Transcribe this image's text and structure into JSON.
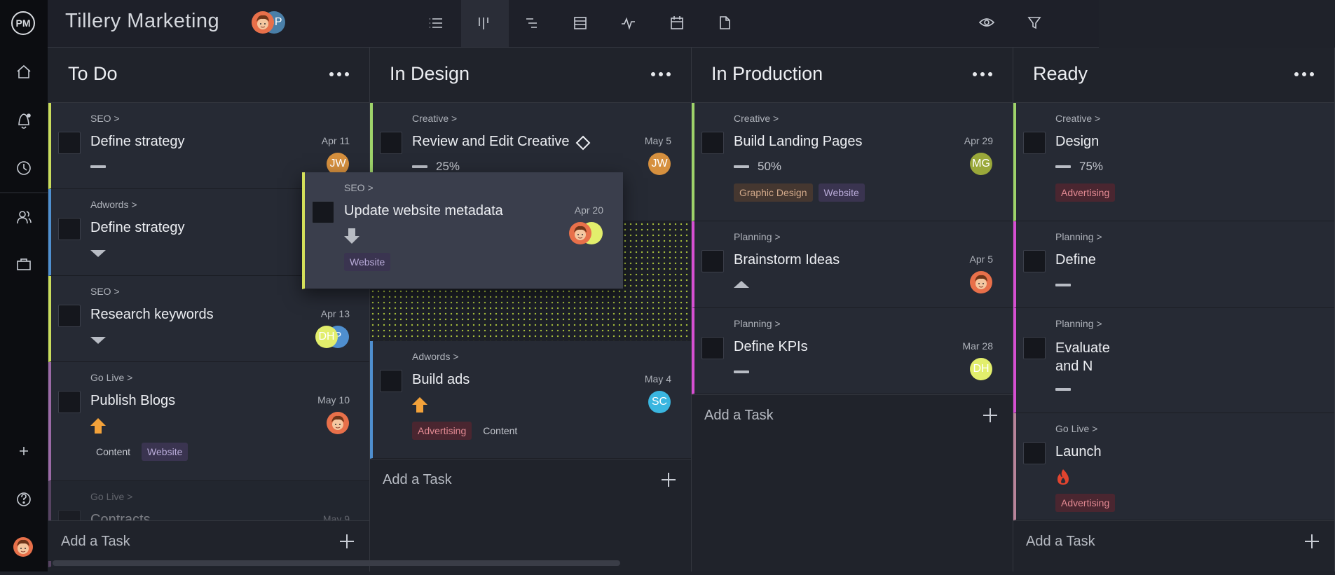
{
  "app": {
    "logo": "PM",
    "title": "Tillery Marketing",
    "members": [
      {
        "face": true,
        "color": "#e8704a"
      },
      {
        "label": "GP",
        "color": "#4a7fa8"
      }
    ]
  },
  "columns": [
    {
      "title": "To Do",
      "add_label": "Add a Task",
      "tasks": [
        {
          "group": "SEO >",
          "name": "Define strategy",
          "date": "Apr 11",
          "color": "#c9dc5c",
          "priority": "low",
          "avatars": [
            {
              "label": "JW",
              "color": "#d6903e"
            }
          ]
        },
        {
          "group": "Adwords >",
          "name": "Define strategy",
          "color": "#4f8fcf",
          "priority": "down"
        },
        {
          "group": "SEO >",
          "name": "Research keywords",
          "date": "Apr 13",
          "color": "#c9dc5c",
          "priority": "down",
          "avatars": [
            {
              "label": "DH",
              "color": "#e2ee6c"
            },
            {
              "label": "P",
              "color": "#4f8fcf"
            }
          ]
        },
        {
          "group": "Go Live >",
          "name": "Publish Blogs",
          "date": "May 10",
          "color": "#9b6aa6",
          "priority": "high",
          "avatars": [
            {
              "face": true,
              "color": "#e8704a"
            }
          ],
          "tags": [
            {
              "text": "Content",
              "color": "plain"
            },
            {
              "text": "Website",
              "color": "purple"
            }
          ]
        },
        {
          "group": "Go Live >",
          "name": "Contracts",
          "date": "May 9",
          "color": "#9b6aa6"
        }
      ]
    },
    {
      "title": "In Design",
      "add_label": "Add a Task",
      "tasks": [
        {
          "group": "Creative >",
          "name": "Review and Edit Creative",
          "milestone": true,
          "date": "May 5",
          "color": "#9ed36a",
          "priority": "low",
          "progress": "25%",
          "avatars": [
            {
              "label": "JW",
              "color": "#d6903e"
            }
          ]
        },
        {
          "group": "Adwords >",
          "name": "Build ads",
          "date": "May 4",
          "color": "#4f8fcf",
          "priority": "high",
          "avatars": [
            {
              "label": "SC",
              "color": "#3ab6e0"
            }
          ],
          "tags": [
            {
              "text": "Advertising",
              "color": "red"
            },
            {
              "text": "Content",
              "color": "plain"
            }
          ]
        }
      ]
    },
    {
      "title": "In Production",
      "add_label": "Add a Task",
      "tasks": [
        {
          "group": "Creative >",
          "name": "Build Landing Pages",
          "date": "Apr 29",
          "color": "#9ed36a",
          "priority": "low",
          "progress": "50%",
          "avatars": [
            {
              "label": "MG",
              "color": "#9aa83a"
            }
          ],
          "tags": [
            {
              "text": "Graphic Design",
              "color": "brown"
            },
            {
              "text": "Website",
              "color": "purple"
            }
          ]
        },
        {
          "group": "Planning >",
          "name": "Brainstorm Ideas",
          "date": "Apr 5",
          "color": "#d64fd2",
          "priority": "up",
          "avatars": [
            {
              "face": true,
              "color": "#e8704a"
            }
          ]
        },
        {
          "group": "Planning >",
          "name": "Define KPIs",
          "date": "Mar 28",
          "color": "#d64fd2",
          "priority": "low",
          "avatars": [
            {
              "label": "DH",
              "color": "#e2ee6c"
            }
          ]
        }
      ]
    },
    {
      "title": "Ready",
      "add_label": "Add a Task",
      "tasks": [
        {
          "group": "Creative >",
          "name": "Design",
          "color": "#9ed36a",
          "priority": "low",
          "progress": "75%",
          "tags": [
            {
              "text": "Advertising",
              "color": "red"
            }
          ]
        },
        {
          "group": "Planning >",
          "name": "Define",
          "color": "#d64fd2",
          "priority": "low"
        },
        {
          "group": "Planning >",
          "name": "Evaluate and N",
          "color": "#d64fd2",
          "priority": "low"
        },
        {
          "group": "Go Live >",
          "name": "Launch",
          "color": "#b8849a",
          "priority": "critical",
          "tags": [
            {
              "text": "Advertising",
              "color": "red"
            }
          ]
        }
      ]
    }
  ],
  "dragged_task": {
    "group": "SEO >",
    "name": "Update website metadata",
    "date": "Apr 20",
    "color": "#d4e05a",
    "priority": "lowest",
    "avatars": [
      {
        "face": true,
        "color": "#e8704a"
      },
      {
        "color": "#e2ee6c"
      }
    ],
    "tags": [
      {
        "text": "Website",
        "color": "purple"
      }
    ]
  }
}
